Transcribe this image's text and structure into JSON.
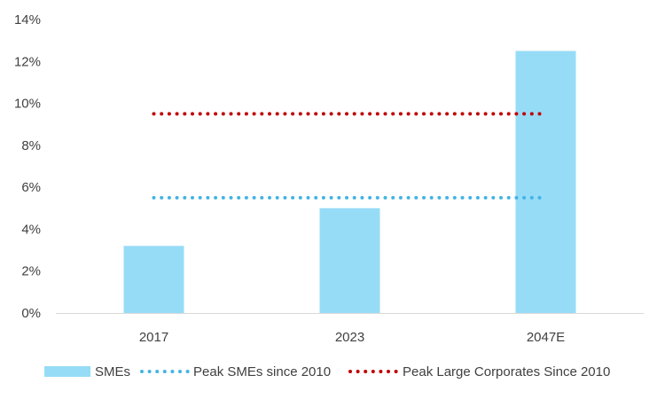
{
  "chart_data": {
    "type": "bar",
    "categories": [
      "2017",
      "2023",
      "2047E"
    ],
    "series": [
      {
        "name": "SMEs",
        "kind": "bar",
        "color": "#97dcf7",
        "values": [
          3.2,
          5.0,
          12.5
        ]
      },
      {
        "name": "Peak SMEs since 2010",
        "kind": "dotted-line",
        "color": "#44b4e4",
        "values": [
          5.5,
          5.5,
          5.5
        ]
      },
      {
        "name": "Peak Large Corporates Since 2010",
        "kind": "dotted-line",
        "color": "#c00000",
        "values": [
          9.5,
          9.5,
          9.5
        ]
      }
    ],
    "ylim": [
      0,
      14
    ],
    "yticks": [
      0,
      2,
      4,
      6,
      8,
      10,
      12,
      14
    ],
    "ytick_labels": [
      "0%",
      "2%",
      "4%",
      "6%",
      "8%",
      "10%",
      "12%",
      "14%"
    ],
    "title": "",
    "xlabel": "",
    "ylabel": "",
    "grid": false,
    "legend_position": "bottom"
  }
}
